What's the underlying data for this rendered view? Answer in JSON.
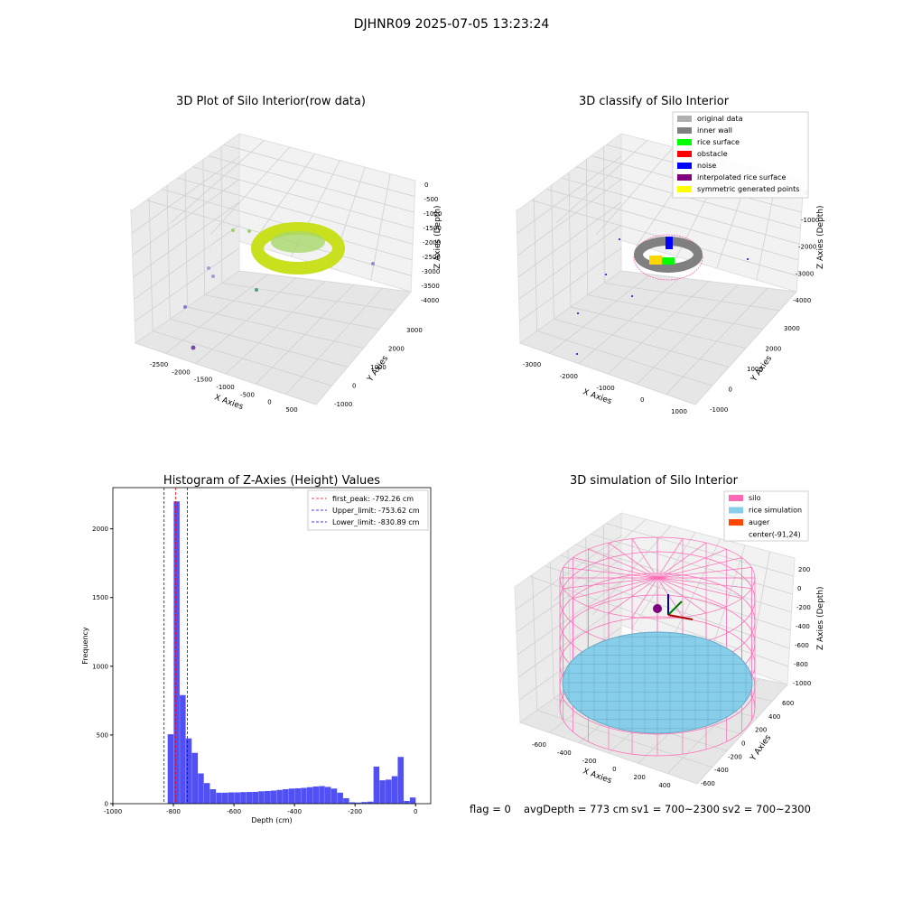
{
  "figure_title": "DJHNR09 2025-07-05 13:23:24",
  "footer": {
    "flag": "flag = 0",
    "avg_depth": "avgDepth = 773 cm",
    "sv1": "sv1 = 700~2300",
    "sv2": "sv2 = 700~2300"
  },
  "colors": {
    "hist_bar": "#5050f5",
    "peak_line": "#ff0000",
    "limit_line": "#0000ff",
    "silo": "#ff69b4",
    "rice_simulation": "#87ceeb",
    "auger": "#ff4500",
    "inner_wall": "#808080",
    "original_data": "#b0b0b0",
    "rice_surface": "#00ff00",
    "obstacle": "#ff0000",
    "noise": "#0000ff",
    "interpolated_rice_surface": "#800080",
    "symmetric_generated_points": "#ffff00"
  },
  "chart_data": [
    {
      "type": "scatter",
      "title": "3D Plot of Silo Interior(row data)",
      "xlabel": "X Axies",
      "ylabel": "Y Axies",
      "zlabel": "Z Axies (Depth)",
      "x_ticks": [
        "-2500",
        "-2000",
        "-1500",
        "-1000",
        "-500",
        "0",
        "500"
      ],
      "y_ticks": [
        "-1000",
        "0",
        "1000",
        "2000",
        "3000"
      ],
      "z_ticks": [
        "0",
        "-500",
        "-1000",
        "-1500",
        "-2000",
        "-2500",
        "-3000",
        "-3500",
        "-4000"
      ],
      "grid": true
    },
    {
      "type": "scatter",
      "title": "3D classify of Silo Interior",
      "xlabel": "X Axies",
      "ylabel": "Y Axies",
      "zlabel": "Z Axies (Depth)",
      "x_ticks": [
        "-3000",
        "-2000",
        "-1000",
        "0",
        "1000"
      ],
      "y_ticks": [
        "-1000",
        "0",
        "1000",
        "2000",
        "3000"
      ],
      "z_ticks": [
        "0",
        "-1000",
        "-2000",
        "-3000",
        "-4000"
      ],
      "legend": [
        {
          "label": "original data",
          "color": "#b0b0b0"
        },
        {
          "label": "inner wall",
          "color": "#808080"
        },
        {
          "label": "rice surface",
          "color": "#00ff00"
        },
        {
          "label": "obstacle",
          "color": "#ff0000"
        },
        {
          "label": "noise",
          "color": "#0000ff"
        },
        {
          "label": "interpolated rice surface",
          "color": "#800080"
        },
        {
          "label": "symmetric generated points",
          "color": "#ffff00"
        }
      ],
      "legend_position": "top-right",
      "grid": true
    },
    {
      "type": "bar",
      "title": "Histogram of Z-Axies (Height) Values",
      "xlabel": "Depth (cm)",
      "ylabel": "Frequency",
      "xlim": [
        -1000,
        50
      ],
      "ylim": [
        0,
        2300
      ],
      "x_ticks": [
        -1000,
        -800,
        -600,
        -400,
        -200,
        0
      ],
      "y_ticks": [
        0,
        500,
        1000,
        1500,
        2000
      ],
      "bin_width": 20,
      "bins": [
        {
          "x": -809,
          "y": 505
        },
        {
          "x": -789,
          "y": 2200
        },
        {
          "x": -769,
          "y": 790
        },
        {
          "x": -749,
          "y": 475
        },
        {
          "x": -729,
          "y": 370
        },
        {
          "x": -709,
          "y": 220
        },
        {
          "x": -689,
          "y": 150
        },
        {
          "x": -669,
          "y": 105
        },
        {
          "x": -649,
          "y": 80
        },
        {
          "x": -629,
          "y": 80
        },
        {
          "x": -609,
          "y": 82
        },
        {
          "x": -589,
          "y": 82
        },
        {
          "x": -569,
          "y": 84
        },
        {
          "x": -549,
          "y": 85
        },
        {
          "x": -529,
          "y": 86
        },
        {
          "x": -509,
          "y": 90
        },
        {
          "x": -489,
          "y": 92
        },
        {
          "x": -469,
          "y": 95
        },
        {
          "x": -449,
          "y": 100
        },
        {
          "x": -429,
          "y": 105
        },
        {
          "x": -409,
          "y": 110
        },
        {
          "x": -389,
          "y": 112
        },
        {
          "x": -369,
          "y": 115
        },
        {
          "x": -349,
          "y": 120
        },
        {
          "x": -329,
          "y": 125
        },
        {
          "x": -309,
          "y": 128
        },
        {
          "x": -289,
          "y": 122
        },
        {
          "x": -269,
          "y": 110
        },
        {
          "x": -249,
          "y": 80
        },
        {
          "x": -229,
          "y": 40
        },
        {
          "x": -209,
          "y": 10
        },
        {
          "x": -189,
          "y": 8
        },
        {
          "x": -169,
          "y": 12
        },
        {
          "x": -149,
          "y": 15
        },
        {
          "x": -129,
          "y": 270
        },
        {
          "x": -109,
          "y": 170
        },
        {
          "x": -89,
          "y": 175
        },
        {
          "x": -69,
          "y": 200
        },
        {
          "x": -49,
          "y": 340
        },
        {
          "x": -29,
          "y": 20
        },
        {
          "x": -9,
          "y": 45
        }
      ],
      "vlines": [
        {
          "label": "first_peak: -792.26 cm",
          "x": -792.26,
          "color": "#ff0000"
        },
        {
          "label": "Upper_limit: -753.62 cm",
          "x": -753.62,
          "color": "#0000ff"
        },
        {
          "label": "Lower_limit: -830.89 cm",
          "x": -830.89,
          "color": "#0000ff"
        }
      ],
      "legend_position": "top-right",
      "grid": false
    },
    {
      "type": "scatter",
      "title": "3D simulation of Silo Interior",
      "xlabel": "X Axies",
      "ylabel": "Y Axies",
      "zlabel": "Z Axies (Depth)",
      "x_ticks": [
        "-600",
        "-400",
        "-200",
        "0",
        "200",
        "400"
      ],
      "y_ticks": [
        "-600",
        "-400",
        "-200",
        "0",
        "200",
        "400",
        "600"
      ],
      "z_ticks": [
        "200",
        "0",
        "-200",
        "-400",
        "-600",
        "-800",
        "-1000"
      ],
      "legend": [
        {
          "label": "silo",
          "color": "#ff69b4"
        },
        {
          "label": "rice simulation",
          "color": "#87ceeb"
        },
        {
          "label": "auger",
          "color": "#ff4500"
        },
        {
          "label": "center(-91,24)",
          "color": ""
        }
      ],
      "legend_position": "top-right",
      "grid": true
    }
  ]
}
